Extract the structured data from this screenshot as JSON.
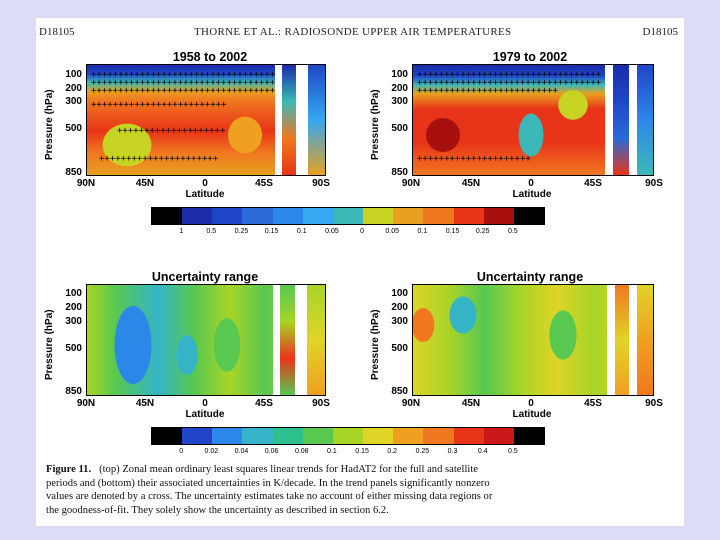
{
  "header": {
    "left": "D18105",
    "center": "THORNE ET AL.: RADIOSONDE UPPER AIR TEMPERATURES",
    "right": "D18105"
  },
  "panels": {
    "top_left_title": "1958 to 2002",
    "top_right_title": "1979 to 2002",
    "bottom_left_title": "Uncertainty range",
    "bottom_right_title": "Uncertainty range"
  },
  "axes": {
    "ylabel": "Pressure (hPa)",
    "xlabel": "Latitude",
    "yticks": [
      "100",
      "200",
      "300",
      "500",
      "850"
    ],
    "xticks": [
      "90N",
      "45N",
      "0",
      "45S",
      "90S"
    ]
  },
  "colorbars": {
    "trend_ticks": [
      "1",
      "0.5",
      "0.25",
      "0.15",
      "0.1",
      "0.05",
      "0",
      "0.05",
      "0.1",
      "0.15",
      "0.25",
      "0.5"
    ],
    "uncert_ticks": [
      "0",
      "0.02",
      "0.04",
      "0.06",
      "0.08",
      "0.1",
      "0.15",
      "0.2",
      "0.25",
      "0.3",
      "0.4",
      "0.5"
    ],
    "trend_colors": [
      "#000000",
      "#1a2ca8",
      "#1f46c8",
      "#2a6bd8",
      "#2c88e8",
      "#35a8f0",
      "#3cb8b8",
      "#c8d424",
      "#e8a020",
      "#f07820",
      "#e83418",
      "#a81010",
      "#000000"
    ],
    "uncert_colors": [
      "#000000",
      "#1f46c8",
      "#2c88e8",
      "#35b4c8",
      "#2ec08c",
      "#58c850",
      "#a8d428",
      "#e0d428",
      "#f0a020",
      "#f07820",
      "#e83418",
      "#c81818",
      "#000000"
    ]
  },
  "caption": {
    "label": "Figure 11.",
    "line1": "(top) Zonal mean ordinary least squares linear trends for HadAT2 for the full and satellite",
    "line2": "periods and (bottom) their associated uncertainties in K/decade. In the trend panels significantly nonzero",
    "line3": "values are denoted by a cross. The uncertainty estimates take no account of either missing data regions or",
    "line4": "the goodness-of-fit. They solely show the uncertainty as described in section 6.2."
  }
}
